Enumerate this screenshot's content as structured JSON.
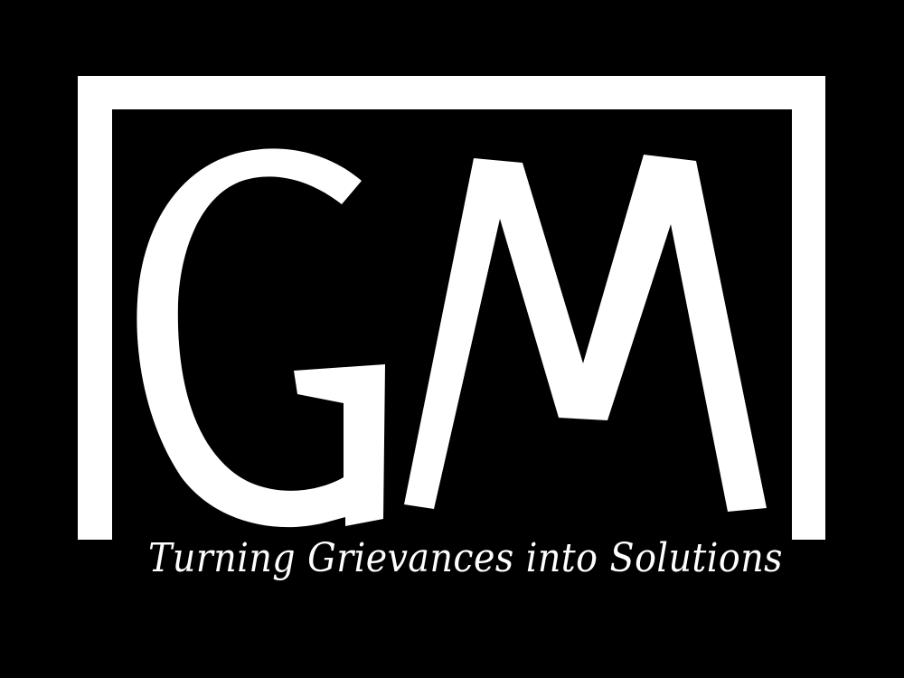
{
  "logo": {
    "monogram": "GM",
    "tagline": "Turning Grievances into Solutions"
  },
  "colors": {
    "background": "#000000",
    "foreground": "#ffffff"
  }
}
